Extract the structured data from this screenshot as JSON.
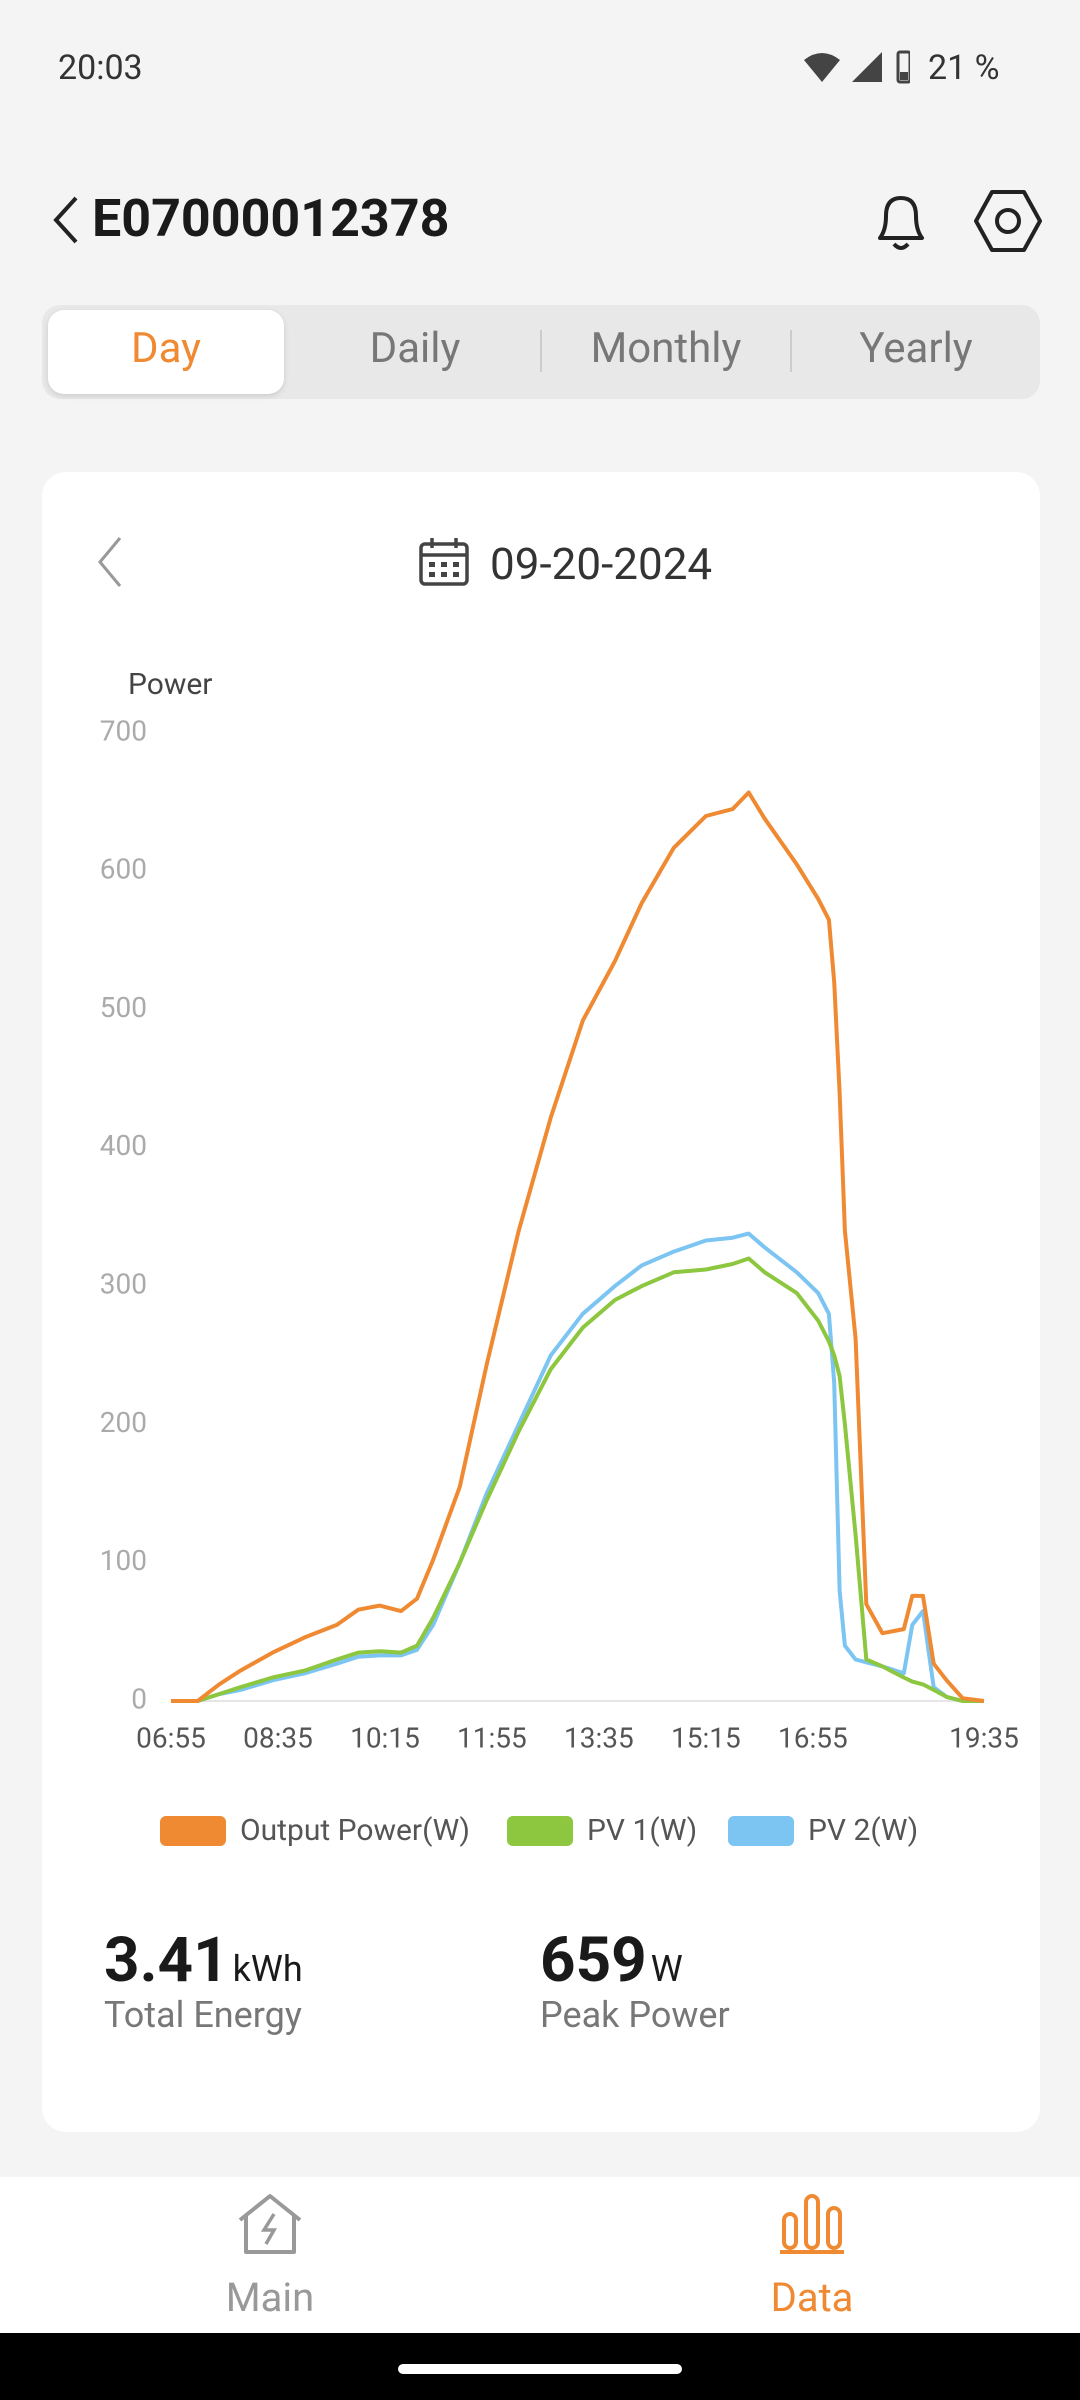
{
  "status_bar": {
    "time": "20:03",
    "battery": "21 %"
  },
  "header": {
    "title": "E07000012378"
  },
  "tabs": [
    "Day",
    "Daily",
    "Monthly",
    "Yearly"
  ],
  "date": "09-20-2024",
  "chart_data": {
    "type": "line",
    "y_label": "Power",
    "x": [
      "06:55",
      "07:20",
      "07:40",
      "08:00",
      "08:30",
      "09:00",
      "09:30",
      "09:50",
      "10:10",
      "10:30",
      "10:45",
      "11:00",
      "11:25",
      "11:50",
      "12:20",
      "12:50",
      "13:20",
      "13:50",
      "14:15",
      "14:45",
      "15:15",
      "15:40",
      "15:55",
      "16:10",
      "16:40",
      "17:00",
      "17:10",
      "17:15",
      "17:20",
      "17:25",
      "17:35",
      "17:45",
      "18:00",
      "18:20",
      "18:28",
      "18:38",
      "18:48",
      "19:00",
      "19:15",
      "19:35"
    ],
    "series": [
      {
        "name": "Output Power(W)",
        "color": "#ef8a33",
        "values": [
          0,
          0,
          12,
          22,
          35,
          46,
          55,
          66,
          69,
          65,
          74,
          102,
          155,
          243,
          340,
          422,
          492,
          535,
          577,
          617,
          640,
          645,
          657,
          638,
          605,
          580,
          565,
          520,
          440,
          340,
          262,
          70,
          49,
          52,
          76,
          76,
          27,
          15,
          2,
          0
        ]
      },
      {
        "name": "PV 1(W)",
        "color": "#8dc63f",
        "values": [
          0,
          0,
          5,
          10,
          17,
          22,
          30,
          35,
          36,
          35,
          40,
          60,
          100,
          145,
          195,
          240,
          270,
          290,
          300,
          310,
          312,
          316,
          320,
          310,
          295,
          275,
          260,
          250,
          235,
          200,
          120,
          30,
          25,
          17,
          14,
          12,
          8,
          3,
          0,
          0
        ]
      },
      {
        "name": "PV 2(W)",
        "color": "#7cc4f2",
        "values": [
          0,
          0,
          5,
          8,
          15,
          20,
          27,
          32,
          33,
          33,
          37,
          55,
          100,
          150,
          200,
          250,
          280,
          300,
          315,
          325,
          333,
          335,
          338,
          328,
          310,
          295,
          280,
          230,
          80,
          40,
          30,
          28,
          25,
          20,
          55,
          65,
          10,
          3,
          0,
          0
        ]
      }
    ],
    "xlim": [
      "06:55",
      "19:35"
    ],
    "xticks": [
      "06:55",
      "08:35",
      "10:15",
      "11:55",
      "13:35",
      "15:15",
      "16:55",
      "19:35"
    ],
    "ylim": [
      0,
      700
    ],
    "yticks": [
      0,
      100,
      200,
      300,
      400,
      500,
      600,
      700
    ]
  },
  "stats": [
    {
      "value": 3.41,
      "unit": "kWh",
      "label": "Total Energy"
    },
    {
      "value": 659,
      "unit": "W",
      "label": "Peak Power"
    }
  ],
  "nav": [
    "Main",
    "Data"
  ]
}
